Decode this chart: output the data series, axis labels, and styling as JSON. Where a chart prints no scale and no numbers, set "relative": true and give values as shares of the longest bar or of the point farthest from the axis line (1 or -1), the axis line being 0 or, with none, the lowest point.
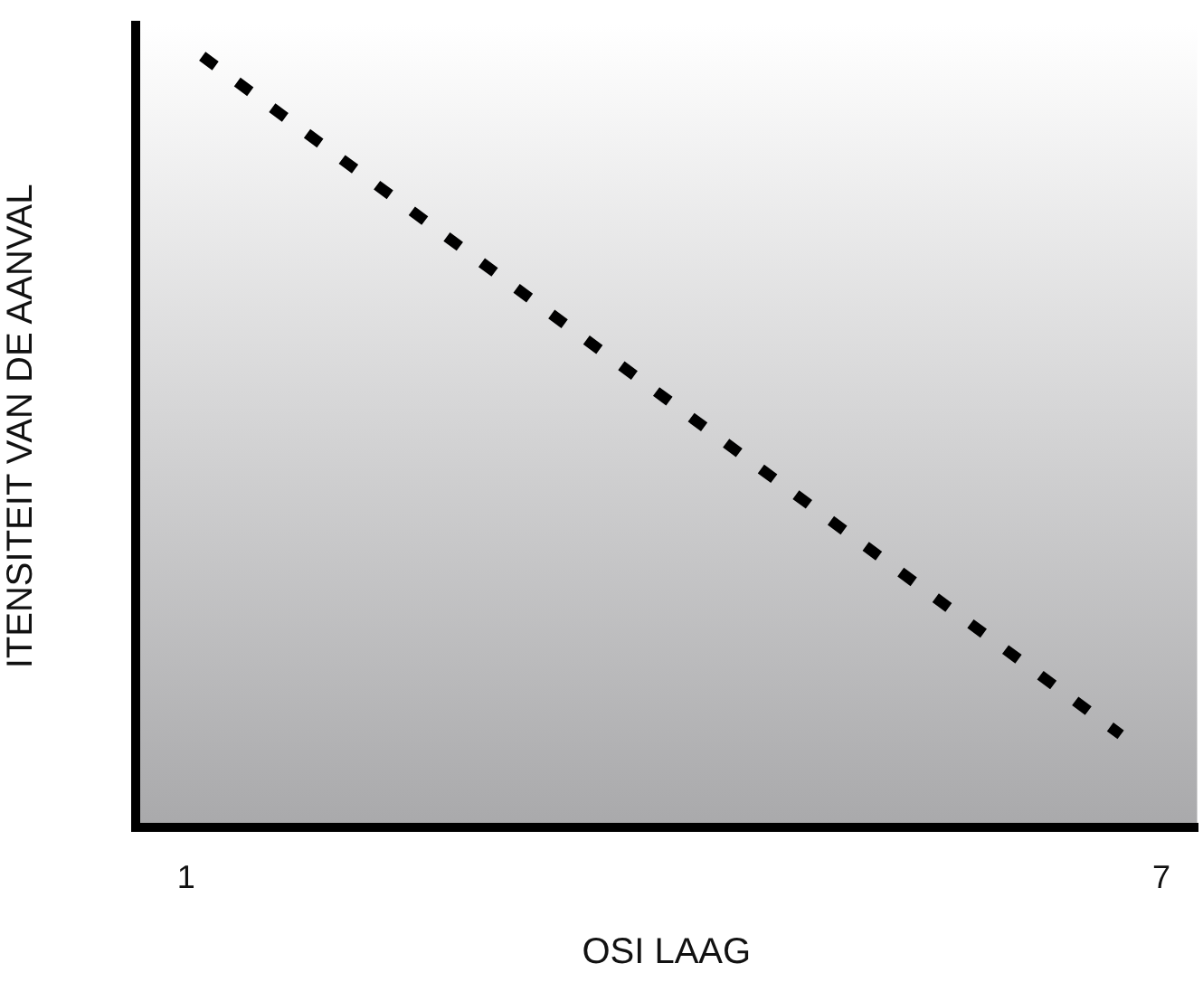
{
  "chart_data": {
    "type": "line",
    "xlabel": "OSI LAAG",
    "ylabel": "ITENSITEIT VAN DE AANVAL",
    "relative": true,
    "series": [
      {
        "x": [
          1.1,
          6.75
        ],
        "values": [
          1,
          0.12
        ],
        "color": "#000000"
      }
    ],
    "xlim": [
      0.69,
      7.22
    ],
    "xticks": [
      1,
      7
    ],
    "line_style": "dashed",
    "marker": "none",
    "grid": false,
    "legend": false
  }
}
